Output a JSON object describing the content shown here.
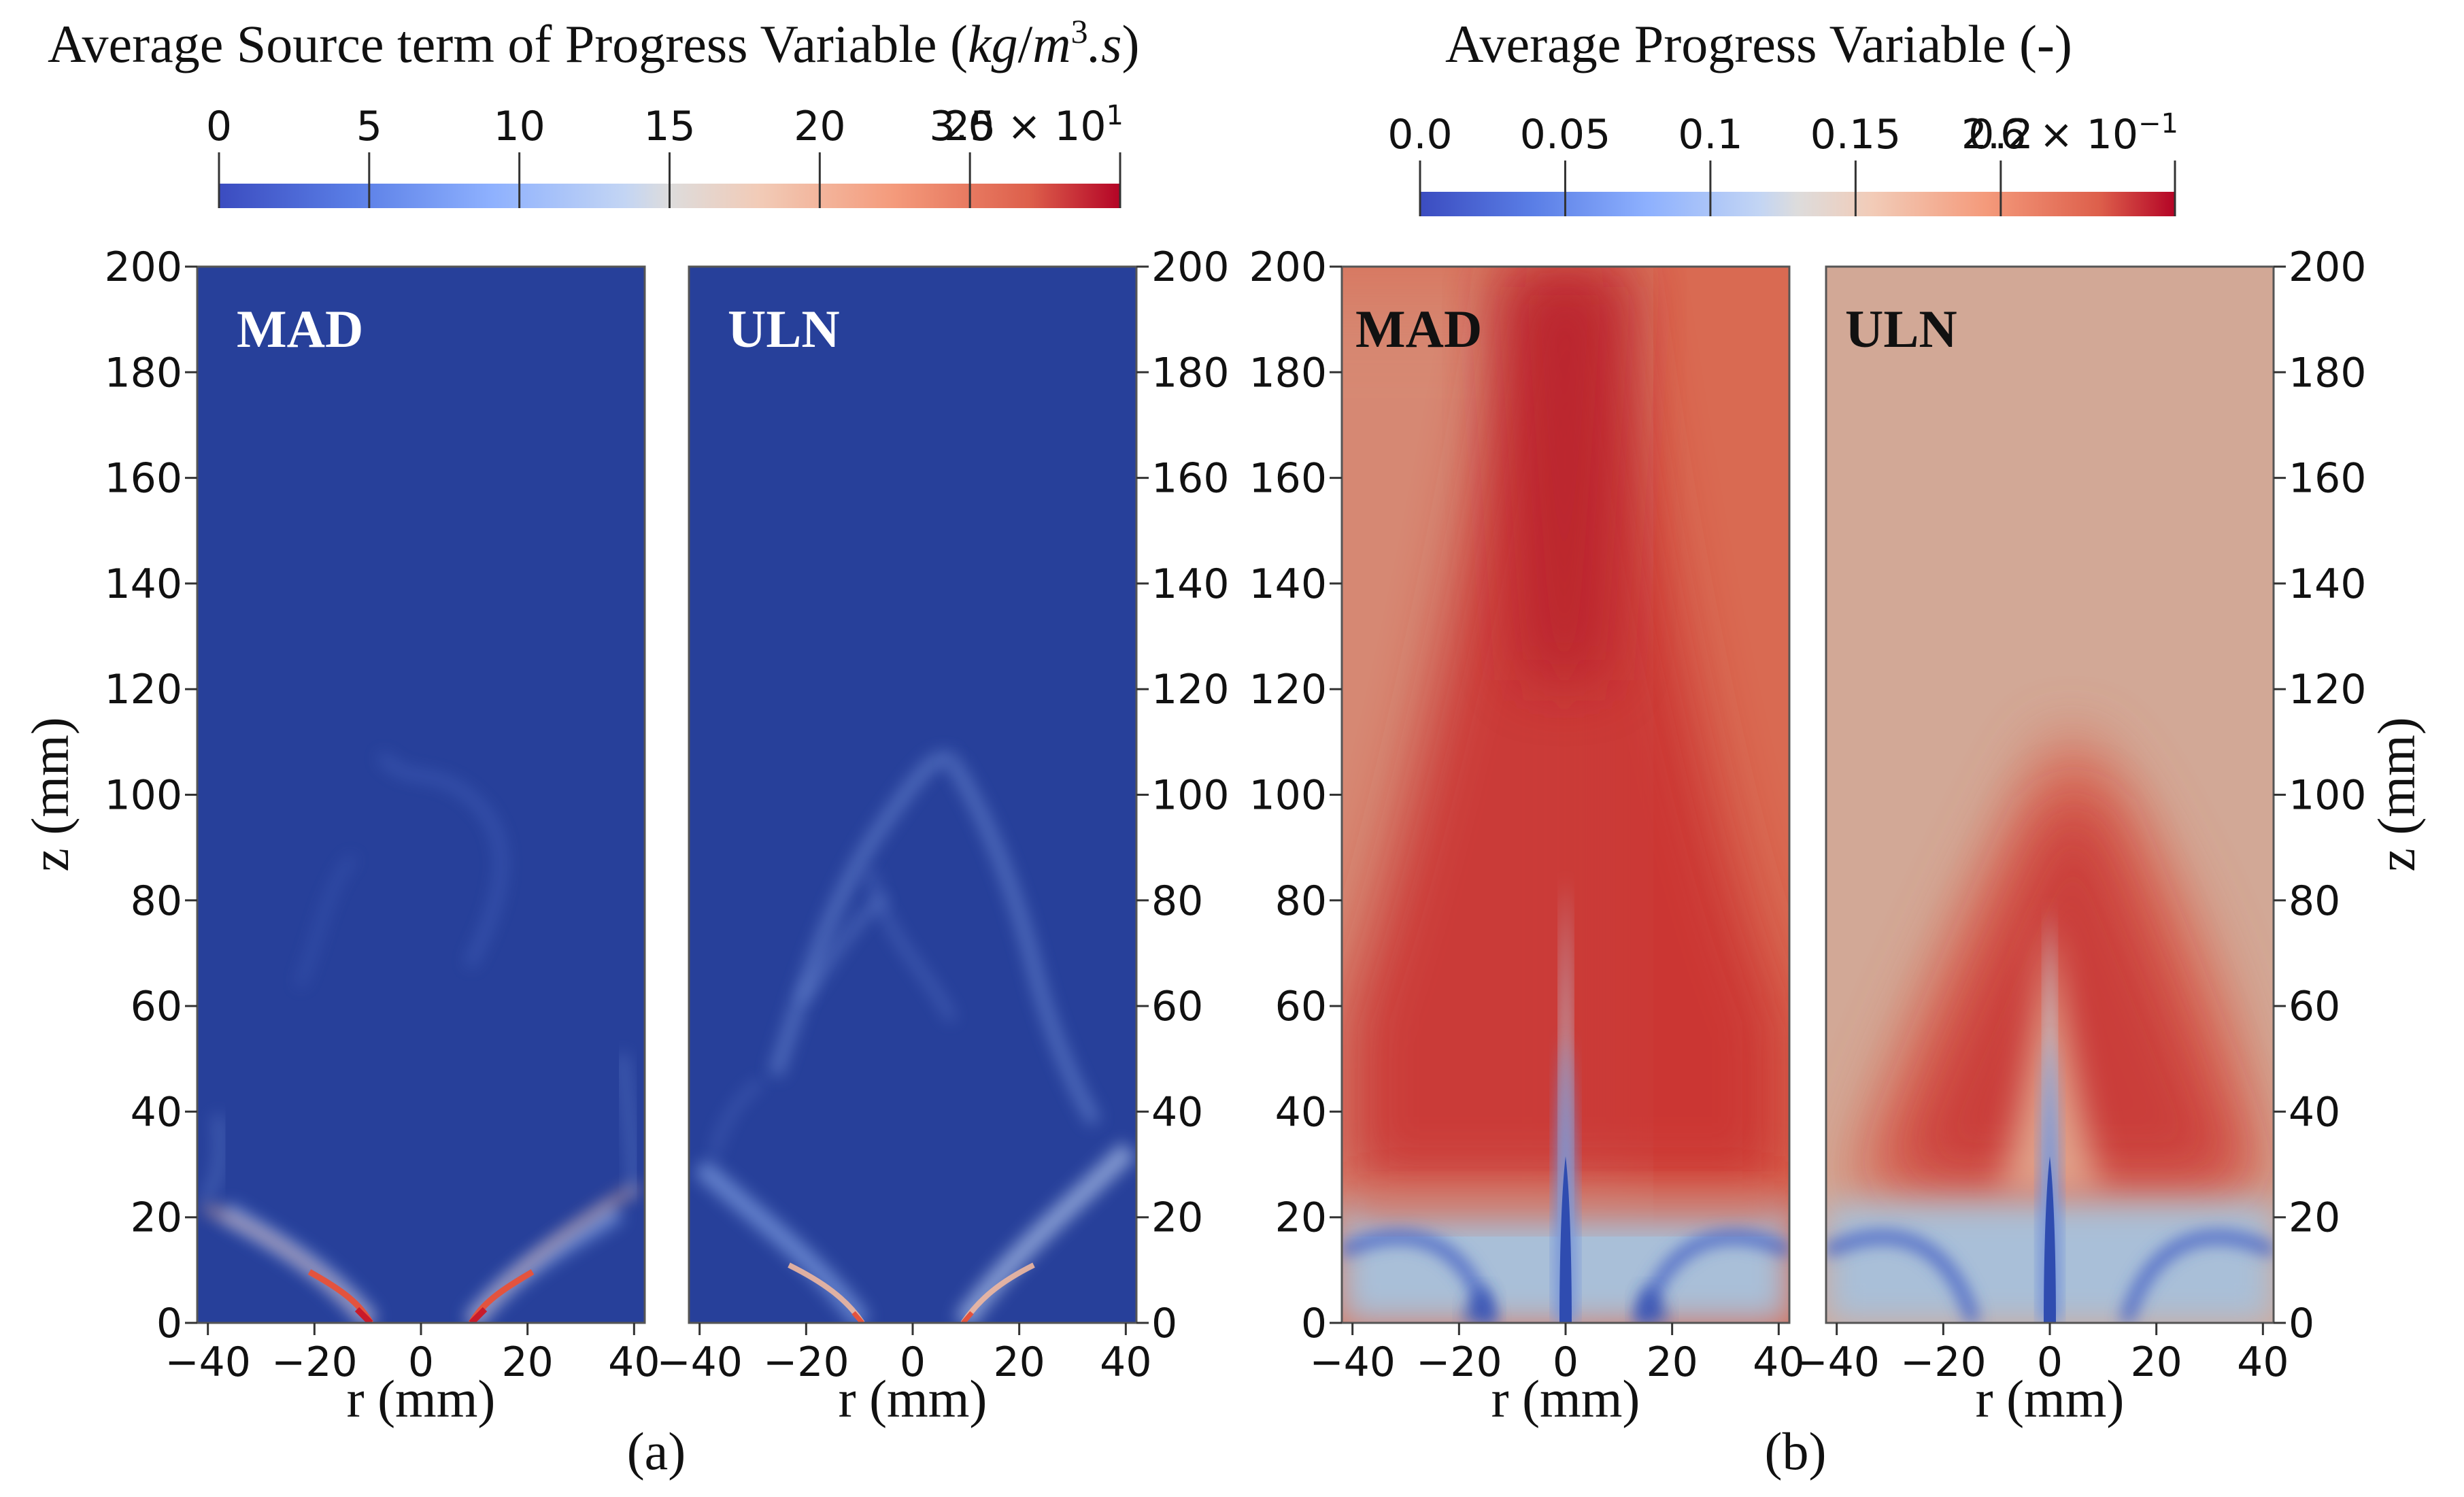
{
  "chart_data": [
    {
      "type": "heatmap",
      "panel_label": "(a)",
      "title": "Average Source term of Progress Variable (kg/m³.s)",
      "title_text": "Average Source term of Progress Variable (",
      "title_unit": {
        "kg": "kg",
        "slash": "/",
        "m": "m",
        "sup": "3",
        "dot_s": ".s",
        "close": ")"
      },
      "colorbar": {
        "min": 0,
        "max": 30,
        "ticks": [
          {
            "value": 0,
            "label": "0"
          },
          {
            "value": 5,
            "label": "5"
          },
          {
            "value": 10,
            "label": "10"
          },
          {
            "value": 15,
            "label": "15"
          },
          {
            "value": 20,
            "label": "20"
          },
          {
            "value": 25,
            "label": "25"
          },
          {
            "value": 30,
            "label": "3.0 × 10",
            "exp": "1"
          }
        ],
        "colormap": "cool-to-warm"
      },
      "xlabel": "r (mm)",
      "ylabel": "z (mm)",
      "xlim": [
        -42,
        42
      ],
      "ylim": [
        0,
        200
      ],
      "xticks": [
        -40,
        -20,
        0,
        20,
        40
      ],
      "xtick_labels": [
        "−40",
        "−20",
        "0",
        "20",
        "40"
      ],
      "yticks": [
        0,
        20,
        40,
        60,
        80,
        100,
        120,
        140,
        160,
        180,
        200
      ],
      "ytick_labels": [
        "0",
        "20",
        "40",
        "60",
        "80",
        "100",
        "120",
        "140",
        "160",
        "180",
        "200"
      ],
      "subplots": [
        {
          "label": "MAD",
          "background_value": 0.2,
          "features": [
            {
              "kind": "shear-layer-branch",
              "side": "left",
              "r_at_z0": -9,
              "r_at_z20": -29,
              "z_end": 35,
              "peak_value": 30
            },
            {
              "kind": "shear-layer-branch",
              "side": "right",
              "r_at_z0": 9,
              "r_at_z20": 29,
              "z_end": 35,
              "peak_value": 30
            },
            {
              "kind": "diffuse-plume",
              "z_range": [
                40,
                110
              ],
              "peak_value": 4
            }
          ]
        },
        {
          "label": "ULN",
          "background_value": 0.2,
          "features": [
            {
              "kind": "shear-layer-branch",
              "side": "left",
              "r_at_z0": -9,
              "r_at_z20": -29,
              "z_end": 35,
              "peak_value": 14
            },
            {
              "kind": "shear-layer-branch",
              "side": "right",
              "r_at_z0": 9,
              "r_at_z20": 29,
              "z_end": 35,
              "peak_value": 14
            },
            {
              "kind": "wrinkled-flame-brush",
              "z_range": [
                40,
                110
              ],
              "peak_value": 7
            }
          ]
        }
      ]
    },
    {
      "type": "heatmap",
      "panel_label": "(b)",
      "title": "Average Progress Variable (-)",
      "colorbar": {
        "min": 0.0,
        "max": 0.26,
        "ticks": [
          {
            "value": 0.0,
            "label": "0.0"
          },
          {
            "value": 0.05,
            "label": "0.05"
          },
          {
            "value": 0.1,
            "label": "0.1"
          },
          {
            "value": 0.15,
            "label": "0.15"
          },
          {
            "value": 0.2,
            "label": "0.2"
          },
          {
            "value": 0.26,
            "label": "2.6 × 10",
            "exp": "−1"
          }
        ],
        "colormap": "cool-to-warm"
      },
      "xlabel": "r (mm)",
      "ylabel": "z (mm)",
      "xlim": [
        -42,
        42
      ],
      "ylim": [
        0,
        200
      ],
      "xticks": [
        -40,
        -20,
        0,
        20,
        40
      ],
      "xtick_labels": [
        "−40",
        "−20",
        "0",
        "20",
        "40"
      ],
      "yticks": [
        0,
        20,
        40,
        60,
        80,
        100,
        120,
        140,
        160,
        180,
        200
      ],
      "ytick_labels": [
        "0",
        "20",
        "40",
        "60",
        "80",
        "100",
        "120",
        "140",
        "160",
        "180",
        "200"
      ],
      "subplots": [
        {
          "label": "MAD",
          "background_value": 0.22,
          "features": [
            {
              "kind": "central-jet-core",
              "z_range": [
                0,
                90
              ],
              "min_value": 0.0
            },
            {
              "kind": "outer-recirculation",
              "z_range": [
                0,
                25
              ],
              "value": 0.13
            },
            {
              "kind": "hot-core",
              "z_range": [
                30,
                200
              ],
              "peak_value": 0.26
            }
          ]
        },
        {
          "label": "ULN",
          "background_value": 0.175,
          "features": [
            {
              "kind": "central-jet-core",
              "z_range": [
                0,
                85
              ],
              "min_value": 0.0
            },
            {
              "kind": "outer-recirculation",
              "z_range": [
                0,
                25
              ],
              "value": 0.13
            },
            {
              "kind": "hot-flame-brush",
              "z_range": [
                25,
                105
              ],
              "peak_value": 0.26
            }
          ]
        }
      ]
    }
  ]
}
